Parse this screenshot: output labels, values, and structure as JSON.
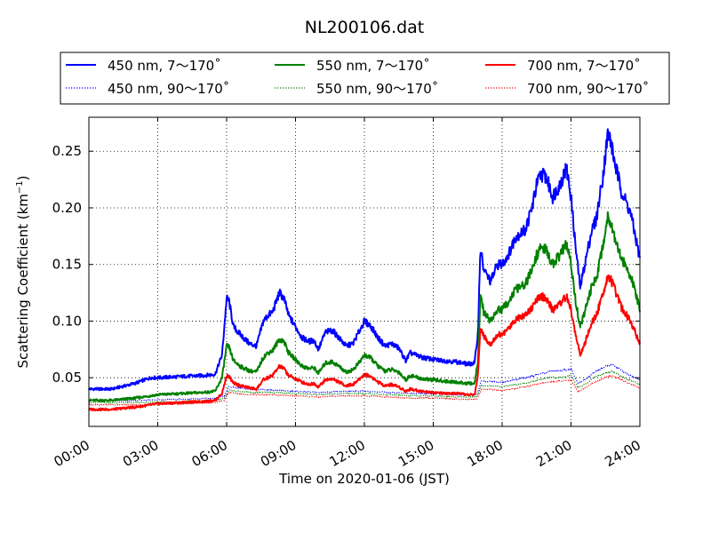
{
  "chart_data": {
    "type": "line",
    "title": "NL200106.dat",
    "xlabel": "Time on 2020-01-06 (JST)",
    "ylabel_main": "Scattering Coefficient (km",
    "ylabel_sup": "−1",
    "ylabel_close": ")",
    "xlim": [
      0,
      24
    ],
    "ylim": [
      0.007,
      0.28
    ],
    "x_ticks": [
      0,
      3,
      6,
      9,
      12,
      15,
      18,
      21,
      24
    ],
    "x_tick_labels": [
      "00:00",
      "03:00",
      "06:00",
      "09:00",
      "12:00",
      "15:00",
      "18:00",
      "21:00",
      "24:00"
    ],
    "y_ticks": [
      0.05,
      0.1,
      0.15,
      0.2,
      0.25
    ],
    "y_tick_labels": [
      "0.05",
      "0.10",
      "0.15",
      "0.20",
      "0.25"
    ],
    "grid": true,
    "legend_position": "top",
    "series": [
      {
        "name": "450 nm, 7～170˚",
        "color": "#0000ff",
        "style": "solid",
        "x": [
          0,
          1,
          2,
          2.7,
          3,
          4,
          5,
          5.5,
          5.8,
          6.0,
          6.1,
          6.3,
          6.6,
          7.0,
          7.3,
          7.6,
          7.8,
          8.0,
          8.3,
          8.5,
          8.7,
          9.0,
          9.3,
          9.6,
          9.8,
          10.0,
          10.3,
          10.6,
          10.9,
          11.2,
          11.5,
          11.8,
          12.0,
          12.3,
          12.6,
          12.9,
          13.2,
          13.5,
          13.8,
          14.0,
          14.5,
          15,
          15.5,
          16,
          16.5,
          16.8,
          16.95,
          17.05,
          17.2,
          17.5,
          17.8,
          18.0,
          18.3,
          18.6,
          19.0,
          19.3,
          19.5,
          19.7,
          19.9,
          20.2,
          20.5,
          20.8,
          21.0,
          21.2,
          21.4,
          21.6,
          21.9,
          22.1,
          22.4,
          22.6,
          22.7,
          22.9,
          23.2,
          23.6,
          24
        ],
        "y": [
          0.04,
          0.04,
          0.045,
          0.05,
          0.05,
          0.051,
          0.052,
          0.053,
          0.07,
          0.12,
          0.118,
          0.095,
          0.088,
          0.08,
          0.078,
          0.1,
          0.105,
          0.108,
          0.125,
          0.12,
          0.105,
          0.095,
          0.085,
          0.082,
          0.083,
          0.075,
          0.09,
          0.092,
          0.085,
          0.078,
          0.08,
          0.092,
          0.1,
          0.095,
          0.085,
          0.078,
          0.08,
          0.076,
          0.065,
          0.072,
          0.068,
          0.066,
          0.065,
          0.064,
          0.062,
          0.063,
          0.09,
          0.165,
          0.145,
          0.135,
          0.15,
          0.15,
          0.16,
          0.175,
          0.18,
          0.2,
          0.22,
          0.23,
          0.228,
          0.21,
          0.22,
          0.235,
          0.21,
          0.165,
          0.13,
          0.15,
          0.18,
          0.19,
          0.23,
          0.265,
          0.262,
          0.24,
          0.215,
          0.195,
          0.155
        ]
      },
      {
        "name": "550 nm, 7～170˚",
        "color": "#008000",
        "style": "solid",
        "x": [
          0,
          1,
          2,
          2.7,
          3,
          4,
          5,
          5.5,
          5.8,
          6.0,
          6.1,
          6.3,
          6.6,
          7.0,
          7.3,
          7.6,
          7.8,
          8.0,
          8.3,
          8.5,
          8.7,
          9.0,
          9.3,
          9.6,
          9.8,
          10.0,
          10.3,
          10.6,
          10.9,
          11.2,
          11.5,
          11.8,
          12.0,
          12.3,
          12.6,
          12.9,
          13.2,
          13.5,
          13.8,
          14.0,
          14.5,
          15,
          15.5,
          16,
          16.5,
          16.8,
          16.95,
          17.05,
          17.2,
          17.5,
          17.8,
          18.0,
          18.3,
          18.6,
          19.0,
          19.3,
          19.5,
          19.7,
          19.9,
          20.2,
          20.5,
          20.8,
          21.0,
          21.2,
          21.4,
          21.6,
          21.9,
          22.1,
          22.4,
          22.6,
          22.7,
          22.9,
          23.2,
          23.6,
          24
        ],
        "y": [
          0.03,
          0.03,
          0.032,
          0.034,
          0.035,
          0.036,
          0.037,
          0.038,
          0.05,
          0.078,
          0.077,
          0.065,
          0.06,
          0.056,
          0.055,
          0.068,
          0.072,
          0.074,
          0.084,
          0.082,
          0.072,
          0.066,
          0.06,
          0.058,
          0.059,
          0.054,
          0.063,
          0.064,
          0.06,
          0.055,
          0.057,
          0.064,
          0.07,
          0.067,
          0.06,
          0.056,
          0.057,
          0.055,
          0.048,
          0.052,
          0.049,
          0.048,
          0.047,
          0.046,
          0.045,
          0.045,
          0.065,
          0.122,
          0.108,
          0.1,
          0.11,
          0.11,
          0.118,
          0.128,
          0.132,
          0.145,
          0.158,
          0.165,
          0.163,
          0.15,
          0.158,
          0.168,
          0.15,
          0.118,
          0.095,
          0.108,
          0.13,
          0.138,
          0.168,
          0.192,
          0.19,
          0.175,
          0.155,
          0.14,
          0.11
        ]
      },
      {
        "name": "700 nm, 7～170˚",
        "color": "#ff0000",
        "style": "solid",
        "x": [
          0,
          1,
          2,
          2.7,
          3,
          4,
          5,
          5.5,
          5.8,
          6.0,
          6.1,
          6.3,
          6.6,
          7.0,
          7.3,
          7.6,
          7.8,
          8.0,
          8.3,
          8.5,
          8.7,
          9.0,
          9.3,
          9.6,
          9.8,
          10.0,
          10.3,
          10.6,
          10.9,
          11.2,
          11.5,
          11.8,
          12.0,
          12.3,
          12.6,
          12.9,
          13.2,
          13.5,
          13.8,
          14.0,
          14.5,
          15,
          15.5,
          16,
          16.5,
          16.8,
          16.95,
          17.05,
          17.2,
          17.5,
          17.8,
          18.0,
          18.3,
          18.6,
          19.0,
          19.3,
          19.5,
          19.7,
          19.9,
          20.2,
          20.5,
          20.8,
          21.0,
          21.2,
          21.4,
          21.6,
          21.9,
          22.1,
          22.4,
          22.6,
          22.7,
          22.9,
          23.2,
          23.6,
          24
        ],
        "y": [
          0.022,
          0.022,
          0.024,
          0.026,
          0.027,
          0.028,
          0.029,
          0.03,
          0.036,
          0.052,
          0.051,
          0.045,
          0.043,
          0.041,
          0.04,
          0.048,
          0.05,
          0.052,
          0.06,
          0.058,
          0.052,
          0.049,
          0.046,
          0.044,
          0.045,
          0.042,
          0.048,
          0.049,
          0.046,
          0.043,
          0.044,
          0.049,
          0.053,
          0.051,
          0.046,
          0.043,
          0.044,
          0.042,
          0.038,
          0.04,
          0.038,
          0.037,
          0.036,
          0.036,
          0.035,
          0.035,
          0.052,
          0.096,
          0.086,
          0.08,
          0.088,
          0.088,
          0.094,
          0.102,
          0.106,
          0.112,
          0.118,
          0.122,
          0.12,
          0.11,
          0.115,
          0.122,
          0.11,
          0.088,
          0.07,
          0.08,
          0.098,
          0.105,
          0.125,
          0.14,
          0.138,
          0.128,
          0.112,
          0.1,
          0.08
        ]
      },
      {
        "name": "450 nm, 90～170˚",
        "color": "#0000ff",
        "style": "dotted",
        "x": [
          0,
          2,
          4,
          5.5,
          5.9,
          6.1,
          7,
          8,
          9,
          10,
          11,
          12,
          13,
          14,
          15,
          16,
          16.9,
          17.1,
          18,
          19,
          20,
          20.5,
          21,
          21.3,
          21.6,
          22,
          22.5,
          22.8,
          23.3,
          24
        ],
        "y": [
          0.03,
          0.03,
          0.031,
          0.032,
          0.034,
          0.042,
          0.04,
          0.039,
          0.038,
          0.037,
          0.038,
          0.038,
          0.037,
          0.036,
          0.036,
          0.035,
          0.035,
          0.047,
          0.046,
          0.05,
          0.055,
          0.056,
          0.058,
          0.045,
          0.048,
          0.055,
          0.06,
          0.062,
          0.055,
          0.048
        ]
      },
      {
        "name": "550 nm, 90～170˚",
        "color": "#008000",
        "style": "dotted",
        "x": [
          0,
          2,
          4,
          5.5,
          5.9,
          6.1,
          7,
          8,
          9,
          10,
          11,
          12,
          13,
          14,
          15,
          16,
          16.9,
          17.1,
          18,
          19,
          20,
          20.5,
          21,
          21.3,
          21.6,
          22,
          22.5,
          22.8,
          23.3,
          24
        ],
        "y": [
          0.028,
          0.028,
          0.029,
          0.03,
          0.032,
          0.039,
          0.037,
          0.037,
          0.036,
          0.035,
          0.036,
          0.036,
          0.035,
          0.034,
          0.034,
          0.033,
          0.033,
          0.043,
          0.042,
          0.045,
          0.05,
          0.05,
          0.052,
          0.041,
          0.044,
          0.05,
          0.054,
          0.056,
          0.05,
          0.044
        ]
      },
      {
        "name": "700 nm, 90～170˚",
        "color": "#ff0000",
        "style": "dotted",
        "x": [
          0,
          2,
          4,
          5.5,
          5.9,
          6.1,
          7,
          8,
          9,
          10,
          11,
          12,
          13,
          14,
          15,
          16,
          16.9,
          17.1,
          18,
          19,
          20,
          20.5,
          21,
          21.3,
          21.6,
          22,
          22.5,
          22.8,
          23.3,
          24
        ],
        "y": [
          0.026,
          0.026,
          0.027,
          0.028,
          0.03,
          0.037,
          0.035,
          0.035,
          0.034,
          0.033,
          0.034,
          0.034,
          0.033,
          0.032,
          0.032,
          0.031,
          0.031,
          0.04,
          0.039,
          0.042,
          0.046,
          0.047,
          0.048,
          0.038,
          0.041,
          0.046,
          0.05,
          0.052,
          0.047,
          0.041
        ]
      }
    ]
  }
}
